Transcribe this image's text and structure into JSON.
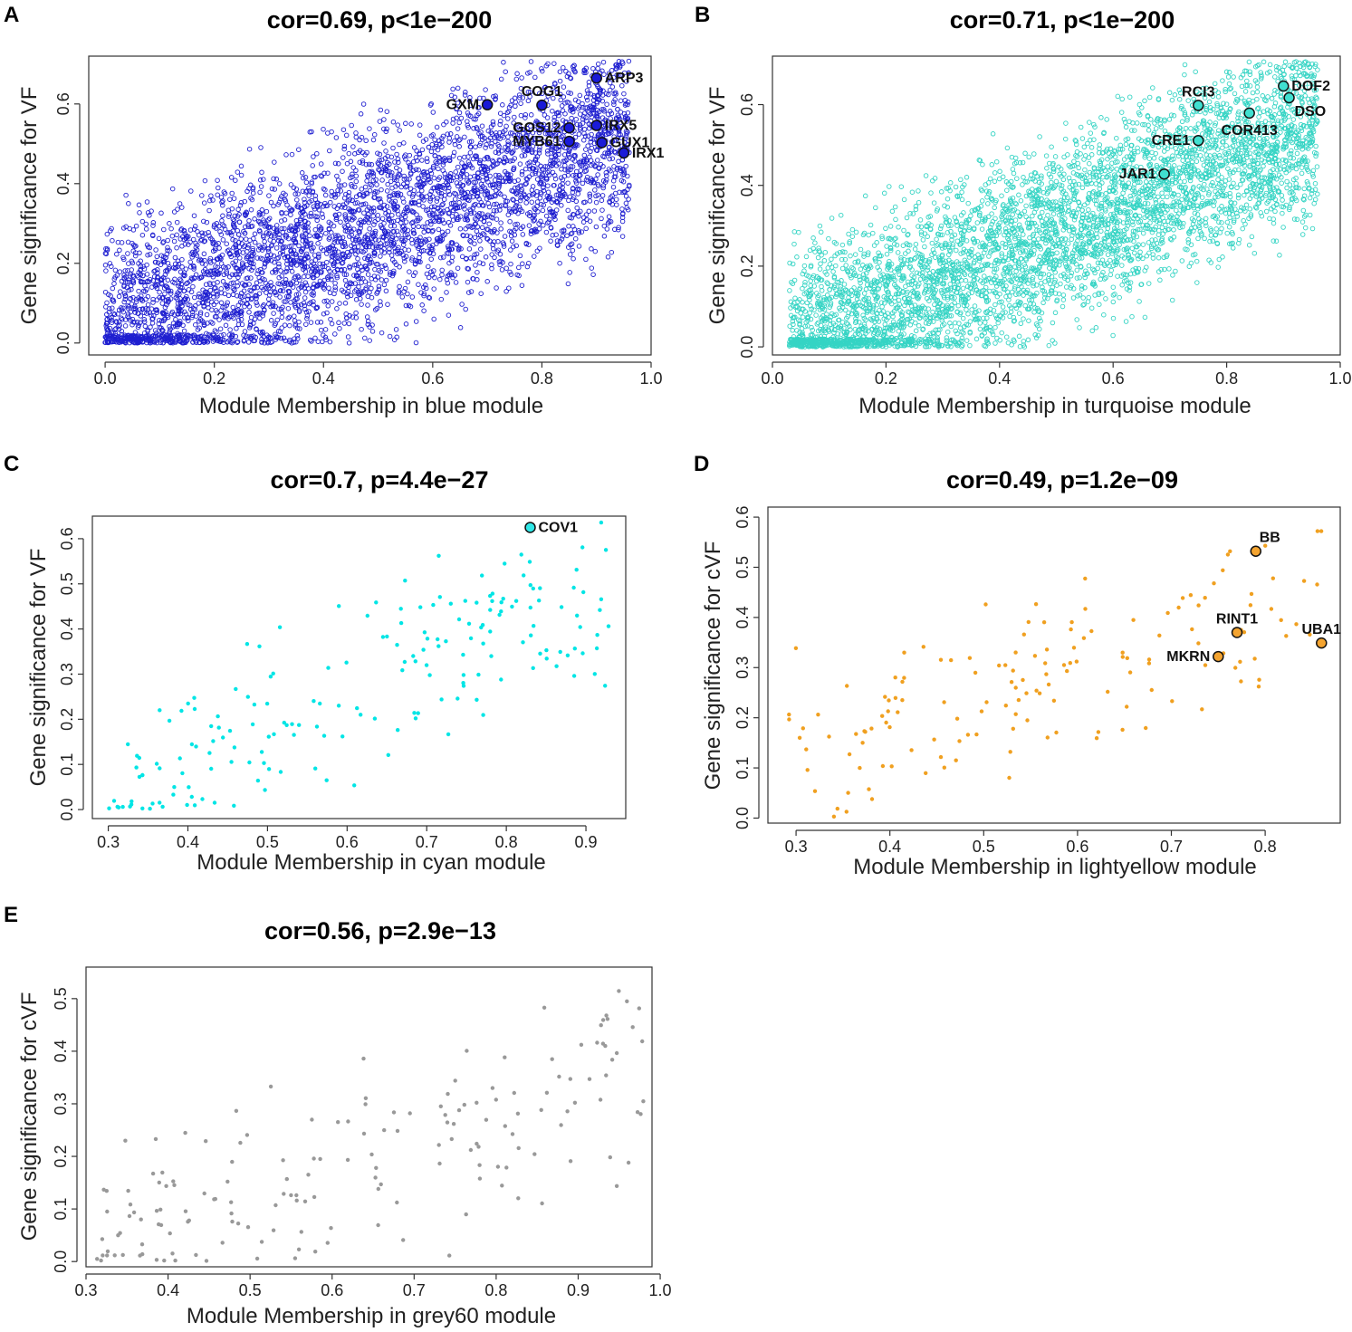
{
  "chart_data": [
    {
      "id": "A",
      "panel_letter": "A",
      "type": "scatter",
      "title": "cor=0.69, p<1e−200",
      "xlabel": "Module Membership in blue module",
      "ylabel": "Gene significance for VF",
      "xlim": [
        -0.03,
        1.0
      ],
      "ylim": [
        -0.03,
        0.72
      ],
      "xticks": [
        0.0,
        0.2,
        0.4,
        0.6,
        0.8,
        1.0
      ],
      "yticks": [
        0.0,
        0.2,
        0.4,
        0.6
      ],
      "xtick_labels": [
        "0.0",
        "0.2",
        "0.4",
        "0.6",
        "0.8",
        "1.0"
      ],
      "ytick_labels": [
        "0.0",
        "0.2",
        "0.4",
        "0.6"
      ],
      "point_style": "open",
      "color": "#1f1fd0",
      "highlight_color": "#1a1ad8",
      "cloud": {
        "n": 4200,
        "xmin": 0.0,
        "xmax": 0.96,
        "slope": 0.5,
        "intercept": 0.04,
        "spread": 0.36,
        "seed": 11
      },
      "highlights": [
        {
          "label": "ARP3",
          "x": 0.9,
          "y": 0.665,
          "side": "right"
        },
        {
          "label": "GXM",
          "x": 0.7,
          "y": 0.598,
          "side": "left"
        },
        {
          "label": "COG1",
          "x": 0.8,
          "y": 0.597,
          "side": "top"
        },
        {
          "label": "IRX5",
          "x": 0.9,
          "y": 0.546,
          "side": "right"
        },
        {
          "label": "GOS12",
          "x": 0.85,
          "y": 0.54,
          "side": "left"
        },
        {
          "label": "GUX1",
          "x": 0.91,
          "y": 0.503,
          "side": "right"
        },
        {
          "label": "MYB61",
          "x": 0.85,
          "y": 0.506,
          "side": "left"
        },
        {
          "label": "IRX1",
          "x": 0.95,
          "y": 0.477,
          "side": "right"
        }
      ]
    },
    {
      "id": "B",
      "panel_letter": "B",
      "type": "scatter",
      "title": "cor=0.71, p<1e−200",
      "xlabel": "Module Membership in turquoise module",
      "ylabel": "Gene significance for VF",
      "xlim": [
        0.0,
        1.0
      ],
      "ylim": [
        -0.02,
        0.72
      ],
      "xticks": [
        0.0,
        0.2,
        0.4,
        0.6,
        0.8,
        1.0
      ],
      "yticks": [
        0.0,
        0.2,
        0.4,
        0.6
      ],
      "xtick_labels": [
        "0.0",
        "0.2",
        "0.4",
        "0.6",
        "0.8",
        "1.0"
      ],
      "ytick_labels": [
        "0.0",
        "0.2",
        "0.4",
        "0.6"
      ],
      "point_style": "open",
      "color": "#35d4c4",
      "highlight_color": "#40e0d0",
      "cloud": {
        "n": 4600,
        "xmin": 0.03,
        "xmax": 0.96,
        "slope": 0.6,
        "intercept": -0.02,
        "spread": 0.33,
        "seed": 23
      },
      "highlights": [
        {
          "label": "DOF2",
          "x": 0.9,
          "y": 0.646,
          "side": "right"
        },
        {
          "label": "RCI3",
          "x": 0.75,
          "y": 0.598,
          "side": "top"
        },
        {
          "label": "DSO",
          "x": 0.91,
          "y": 0.617,
          "side": "below-right"
        },
        {
          "label": "COR413",
          "x": 0.84,
          "y": 0.579,
          "side": "below"
        },
        {
          "label": "CRE1",
          "x": 0.75,
          "y": 0.511,
          "side": "left"
        },
        {
          "label": "JAR1",
          "x": 0.69,
          "y": 0.428,
          "side": "left"
        }
      ]
    },
    {
      "id": "C",
      "panel_letter": "C",
      "type": "scatter",
      "title": "cor=0.7, p=4.4e−27",
      "xlabel": "Module Membership in cyan module",
      "ylabel": "Gene significance for VF",
      "xlim": [
        0.28,
        0.95
      ],
      "ylim": [
        -0.02,
        0.65
      ],
      "xticks": [
        0.3,
        0.4,
        0.5,
        0.6,
        0.7,
        0.8,
        0.9
      ],
      "yticks": [
        0.0,
        0.1,
        0.2,
        0.3,
        0.4,
        0.5,
        0.6
      ],
      "xtick_labels": [
        "0.3",
        "0.4",
        "0.5",
        "0.6",
        "0.7",
        "0.8",
        "0.9"
      ],
      "ytick_labels": [
        "0.0",
        "0.1",
        "0.2",
        "0.3",
        "0.4",
        "0.5",
        "0.6"
      ],
      "point_style": "filled",
      "color": "#00e5e5",
      "highlight_color": "#30e8e8",
      "cloud": {
        "n": 190,
        "xmin": 0.3,
        "xmax": 0.93,
        "slope": 0.75,
        "intercept": -0.2,
        "spread": 0.3,
        "seed": 37
      },
      "highlights": [
        {
          "label": "COV1",
          "x": 0.83,
          "y": 0.625,
          "side": "right"
        }
      ]
    },
    {
      "id": "D",
      "panel_letter": "D",
      "type": "scatter",
      "title": "cor=0.49, p=1.2e−09",
      "xlabel": "Module Membership in lightyellow module",
      "ylabel": "Gene significance for cVF",
      "xlim": [
        0.27,
        0.88
      ],
      "ylim": [
        -0.01,
        0.62
      ],
      "xticks": [
        0.3,
        0.4,
        0.5,
        0.6,
        0.7,
        0.8
      ],
      "yticks": [
        0.0,
        0.1,
        0.2,
        0.3,
        0.4,
        0.5,
        0.6
      ],
      "xtick_labels": [
        "0.3",
        "0.4",
        "0.5",
        "0.6",
        "0.7",
        "0.8"
      ],
      "ytick_labels": [
        "0.0",
        "0.1",
        "0.2",
        "0.3",
        "0.4",
        "0.5",
        "0.6"
      ],
      "point_style": "filled",
      "color": "#f0a020",
      "highlight_color": "#f4a430",
      "cloud": {
        "n": 150,
        "xmin": 0.29,
        "xmax": 0.86,
        "slope": 0.6,
        "intercept": -0.06,
        "spread": 0.3,
        "seed": 51
      },
      "highlights": [
        {
          "label": "BB",
          "x": 0.79,
          "y": 0.532,
          "side": "top-right"
        },
        {
          "label": "RINT1",
          "x": 0.77,
          "y": 0.37,
          "side": "top"
        },
        {
          "label": "UBA1",
          "x": 0.86,
          "y": 0.349,
          "side": "top"
        },
        {
          "label": "MKRN",
          "x": 0.75,
          "y": 0.322,
          "side": "left"
        }
      ]
    },
    {
      "id": "E",
      "panel_letter": "E",
      "type": "scatter",
      "title": "cor=0.56, p=2.9e−13",
      "xlabel": "Module Membership in grey60 module",
      "ylabel": "Gene significance for cVF",
      "xlim": [
        0.3,
        0.99
      ],
      "ylim": [
        -0.01,
        0.56
      ],
      "xticks": [
        0.3,
        0.4,
        0.5,
        0.6,
        0.7,
        0.8,
        0.9,
        1.0
      ],
      "yticks": [
        0.0,
        0.1,
        0.2,
        0.3,
        0.4,
        0.5
      ],
      "xtick_labels": [
        "0.3",
        "0.4",
        "0.5",
        "0.6",
        "0.7",
        "0.8",
        "0.9",
        "1.0"
      ],
      "ytick_labels": [
        "0.0",
        "0.1",
        "0.2",
        "0.3",
        "0.4",
        "0.5"
      ],
      "point_style": "filled",
      "color": "#999999",
      "highlight_color": "#999999",
      "cloud": {
        "n": 170,
        "xmin": 0.31,
        "xmax": 0.98,
        "slope": 0.45,
        "intercept": -0.09,
        "spread": 0.28,
        "seed": 67
      },
      "highlights": []
    }
  ]
}
